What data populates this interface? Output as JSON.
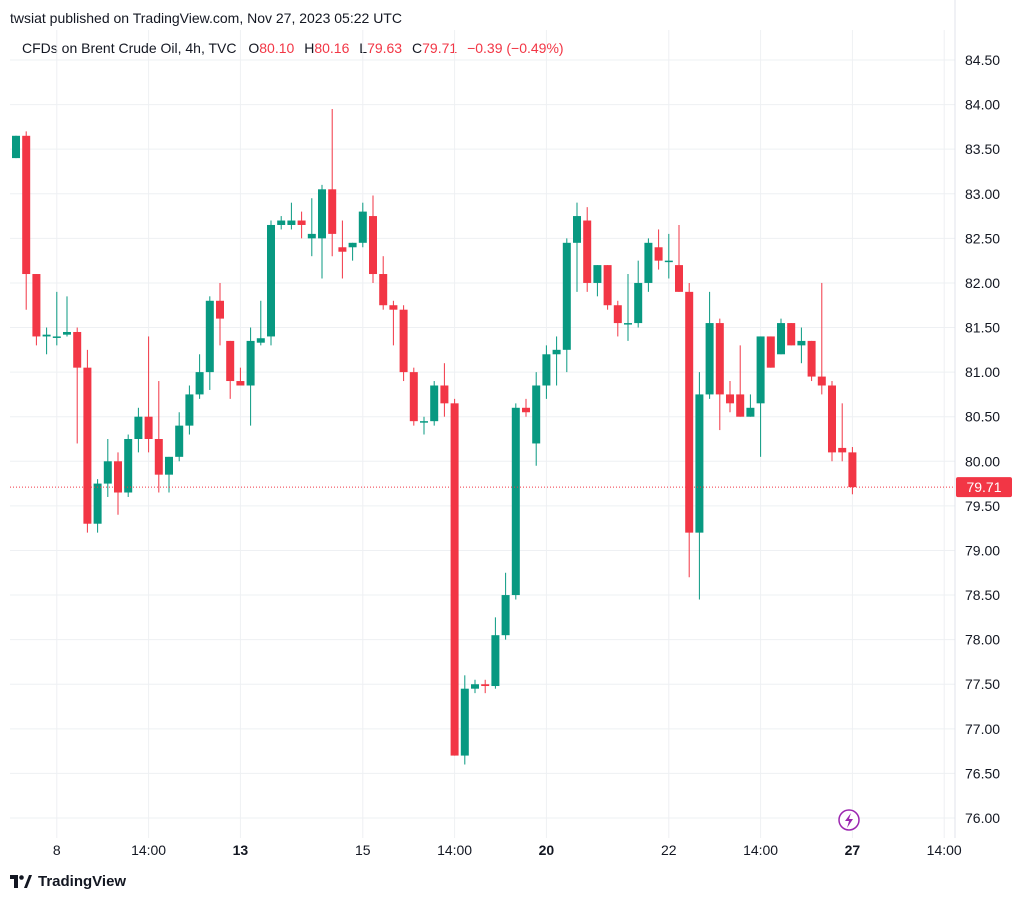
{
  "header": {
    "publisher_line": "twsiat published on TradingView.com, Nov 27, 2023 05:22 UTC"
  },
  "legend": {
    "symbol": "CFDs on Brent Crude Oil, 4h, TVC",
    "o_label": "O",
    "o_value": "80.10",
    "h_label": "H",
    "h_value": "80.16",
    "l_label": "L",
    "l_value": "79.63",
    "c_label": "C",
    "c_value": "79.71",
    "change": "−0.39 (−0.49%)"
  },
  "footer": {
    "brand": "TradingView"
  },
  "colors": {
    "up": "#089981",
    "down": "#f23645",
    "grid": "#eef0f3",
    "price_line": "#f23645",
    "lightning": "#9c27b0"
  },
  "icons": {
    "brand_logo": "tradingview-logo-icon",
    "event_marker": "lightning-icon"
  },
  "chart_data": {
    "type": "candlestick",
    "title": "CFDs on Brent Crude Oil, 4h, TVC",
    "ylim": [
      75.75,
      84.75
    ],
    "y_ticks": [
      "76.00",
      "76.50",
      "77.00",
      "77.50",
      "78.00",
      "78.50",
      "79.00",
      "79.50",
      "80.00",
      "80.50",
      "81.00",
      "81.50",
      "82.00",
      "82.50",
      "83.00",
      "83.50",
      "84.00",
      "84.50"
    ],
    "x_ticks": [
      {
        "label": "8",
        "index": 4,
        "bold": false
      },
      {
        "label": "14:00",
        "index": 13,
        "bold": false
      },
      {
        "label": "13",
        "index": 22,
        "bold": true
      },
      {
        "label": "15",
        "index": 34,
        "bold": false
      },
      {
        "label": "14:00",
        "index": 43,
        "bold": false
      },
      {
        "label": "20",
        "index": 52,
        "bold": true
      },
      {
        "label": "22",
        "index": 64,
        "bold": false
      },
      {
        "label": "14:00",
        "index": 73,
        "bold": false
      },
      {
        "label": "27",
        "index": 82,
        "bold": true
      },
      {
        "label": "14:00",
        "index": 91,
        "bold": false
      }
    ],
    "last_price": "79.71",
    "grid": true,
    "candles": [
      {
        "o": 83.4,
        "h": 83.65,
        "l": 83.4,
        "c": 83.65
      },
      {
        "o": 83.65,
        "h": 83.7,
        "l": 81.7,
        "c": 82.1
      },
      {
        "o": 82.1,
        "h": 82.1,
        "l": 81.3,
        "c": 81.4
      },
      {
        "o": 81.4,
        "h": 81.5,
        "l": 81.2,
        "c": 81.42
      },
      {
        "o": 81.4,
        "h": 81.9,
        "l": 81.3,
        "c": 81.4
      },
      {
        "o": 81.42,
        "h": 81.85,
        "l": 81.4,
        "c": 81.45
      },
      {
        "o": 81.45,
        "h": 81.5,
        "l": 80.2,
        "c": 81.05
      },
      {
        "o": 81.05,
        "h": 81.25,
        "l": 79.2,
        "c": 79.3
      },
      {
        "o": 79.3,
        "h": 79.8,
        "l": 79.2,
        "c": 79.75
      },
      {
        "o": 79.75,
        "h": 80.25,
        "l": 79.6,
        "c": 80.0
      },
      {
        "o": 80.0,
        "h": 80.1,
        "l": 79.4,
        "c": 79.65
      },
      {
        "o": 79.65,
        "h": 80.3,
        "l": 79.6,
        "c": 80.25
      },
      {
        "o": 80.25,
        "h": 80.6,
        "l": 80.1,
        "c": 80.5
      },
      {
        "o": 80.5,
        "h": 81.4,
        "l": 80.1,
        "c": 80.25
      },
      {
        "o": 80.25,
        "h": 80.9,
        "l": 79.65,
        "c": 79.85
      },
      {
        "o": 79.85,
        "h": 80.05,
        "l": 79.65,
        "c": 80.05
      },
      {
        "o": 80.05,
        "h": 80.55,
        "l": 80.0,
        "c": 80.4
      },
      {
        "o": 80.4,
        "h": 80.85,
        "l": 80.3,
        "c": 80.75
      },
      {
        "o": 80.75,
        "h": 81.2,
        "l": 80.7,
        "c": 81.0
      },
      {
        "o": 81.0,
        "h": 81.85,
        "l": 80.8,
        "c": 81.8
      },
      {
        "o": 81.8,
        "h": 82.0,
        "l": 81.3,
        "c": 81.6
      },
      {
        "o": 81.35,
        "h": 81.35,
        "l": 80.7,
        "c": 80.9
      },
      {
        "o": 80.9,
        "h": 81.05,
        "l": 80.85,
        "c": 80.85
      },
      {
        "o": 80.85,
        "h": 81.5,
        "l": 80.4,
        "c": 81.35
      },
      {
        "o": 81.33,
        "h": 81.8,
        "l": 81.3,
        "c": 81.38
      },
      {
        "o": 81.4,
        "h": 82.7,
        "l": 81.3,
        "c": 82.65
      },
      {
        "o": 82.65,
        "h": 82.75,
        "l": 82.6,
        "c": 82.7
      },
      {
        "o": 82.65,
        "h": 82.9,
        "l": 82.6,
        "c": 82.7
      },
      {
        "o": 82.7,
        "h": 82.8,
        "l": 82.5,
        "c": 82.65
      },
      {
        "o": 82.5,
        "h": 82.95,
        "l": 82.3,
        "c": 82.55
      },
      {
        "o": 82.5,
        "h": 83.1,
        "l": 82.05,
        "c": 83.05
      },
      {
        "o": 83.05,
        "h": 83.95,
        "l": 82.3,
        "c": 82.55
      },
      {
        "o": 82.4,
        "h": 82.7,
        "l": 82.05,
        "c": 82.35
      },
      {
        "o": 82.4,
        "h": 82.45,
        "l": 82.25,
        "c": 82.45
      },
      {
        "o": 82.45,
        "h": 82.9,
        "l": 82.4,
        "c": 82.8
      },
      {
        "o": 82.75,
        "h": 82.98,
        "l": 82.0,
        "c": 82.1
      },
      {
        "o": 82.1,
        "h": 82.3,
        "l": 81.7,
        "c": 81.75
      },
      {
        "o": 81.75,
        "h": 81.8,
        "l": 81.3,
        "c": 81.7
      },
      {
        "o": 81.7,
        "h": 81.75,
        "l": 80.9,
        "c": 81.0
      },
      {
        "o": 81.0,
        "h": 81.05,
        "l": 80.4,
        "c": 80.45
      },
      {
        "o": 80.45,
        "h": 80.5,
        "l": 80.3,
        "c": 80.45
      },
      {
        "o": 80.45,
        "h": 80.9,
        "l": 80.4,
        "c": 80.85
      },
      {
        "o": 80.85,
        "h": 81.1,
        "l": 80.5,
        "c": 80.65
      },
      {
        "o": 80.65,
        "h": 80.7,
        "l": 76.7,
        "c": 76.7
      },
      {
        "o": 76.7,
        "h": 77.6,
        "l": 76.6,
        "c": 77.45
      },
      {
        "o": 77.45,
        "h": 77.55,
        "l": 77.4,
        "c": 77.5
      },
      {
        "o": 77.5,
        "h": 77.55,
        "l": 77.4,
        "c": 77.48
      },
      {
        "o": 77.48,
        "h": 78.25,
        "l": 77.45,
        "c": 78.05
      },
      {
        "o": 78.05,
        "h": 78.75,
        "l": 78.0,
        "c": 78.5
      },
      {
        "o": 78.5,
        "h": 80.65,
        "l": 78.45,
        "c": 80.6
      },
      {
        "o": 80.6,
        "h": 80.7,
        "l": 80.5,
        "c": 80.55
      },
      {
        "o": 80.2,
        "h": 81.0,
        "l": 79.95,
        "c": 80.85
      },
      {
        "o": 80.85,
        "h": 81.3,
        "l": 80.7,
        "c": 81.2
      },
      {
        "o": 81.2,
        "h": 81.4,
        "l": 80.85,
        "c": 81.25
      },
      {
        "o": 81.25,
        "h": 82.5,
        "l": 81.0,
        "c": 82.45
      },
      {
        "o": 82.45,
        "h": 82.9,
        "l": 81.9,
        "c": 82.75
      },
      {
        "o": 82.7,
        "h": 82.85,
        "l": 81.9,
        "c": 82.0
      },
      {
        "o": 82.0,
        "h": 82.2,
        "l": 81.85,
        "c": 82.2
      },
      {
        "o": 82.2,
        "h": 82.2,
        "l": 81.7,
        "c": 81.75
      },
      {
        "o": 81.75,
        "h": 81.8,
        "l": 81.4,
        "c": 81.55
      },
      {
        "o": 81.55,
        "h": 82.1,
        "l": 81.35,
        "c": 81.55
      },
      {
        "o": 81.55,
        "h": 82.25,
        "l": 81.5,
        "c": 82.0
      },
      {
        "o": 82.0,
        "h": 82.5,
        "l": 81.9,
        "c": 82.45
      },
      {
        "o": 82.4,
        "h": 82.6,
        "l": 82.15,
        "c": 82.25
      },
      {
        "o": 82.25,
        "h": 82.55,
        "l": 82.05,
        "c": 82.25
      },
      {
        "o": 82.2,
        "h": 82.65,
        "l": 81.9,
        "c": 81.9
      },
      {
        "o": 81.9,
        "h": 82.0,
        "l": 78.7,
        "c": 79.2
      },
      {
        "o": 79.2,
        "h": 81.0,
        "l": 78.45,
        "c": 80.75
      },
      {
        "o": 80.75,
        "h": 81.9,
        "l": 80.7,
        "c": 81.55
      },
      {
        "o": 81.55,
        "h": 81.6,
        "l": 80.35,
        "c": 80.75
      },
      {
        "o": 80.75,
        "h": 80.9,
        "l": 80.55,
        "c": 80.65
      },
      {
        "o": 80.75,
        "h": 81.3,
        "l": 80.5,
        "c": 80.5
      },
      {
        "o": 80.5,
        "h": 80.75,
        "l": 80.5,
        "c": 80.6
      },
      {
        "o": 80.65,
        "h": 81.4,
        "l": 80.05,
        "c": 81.4
      },
      {
        "o": 81.4,
        "h": 81.4,
        "l": 81.05,
        "c": 81.05
      },
      {
        "o": 81.2,
        "h": 81.6,
        "l": 81.2,
        "c": 81.55
      },
      {
        "o": 81.55,
        "h": 81.55,
        "l": 81.3,
        "c": 81.3
      },
      {
        "o": 81.3,
        "h": 81.5,
        "l": 81.1,
        "c": 81.35
      },
      {
        "o": 81.35,
        "h": 81.35,
        "l": 80.9,
        "c": 80.95
      },
      {
        "o": 80.95,
        "h": 82.0,
        "l": 80.75,
        "c": 80.85
      },
      {
        "o": 80.85,
        "h": 80.9,
        "l": 80.0,
        "c": 80.1
      },
      {
        "o": 80.15,
        "h": 80.65,
        "l": 80.0,
        "c": 80.1
      },
      {
        "o": 80.1,
        "h": 80.16,
        "l": 79.63,
        "c": 79.71
      }
    ]
  }
}
